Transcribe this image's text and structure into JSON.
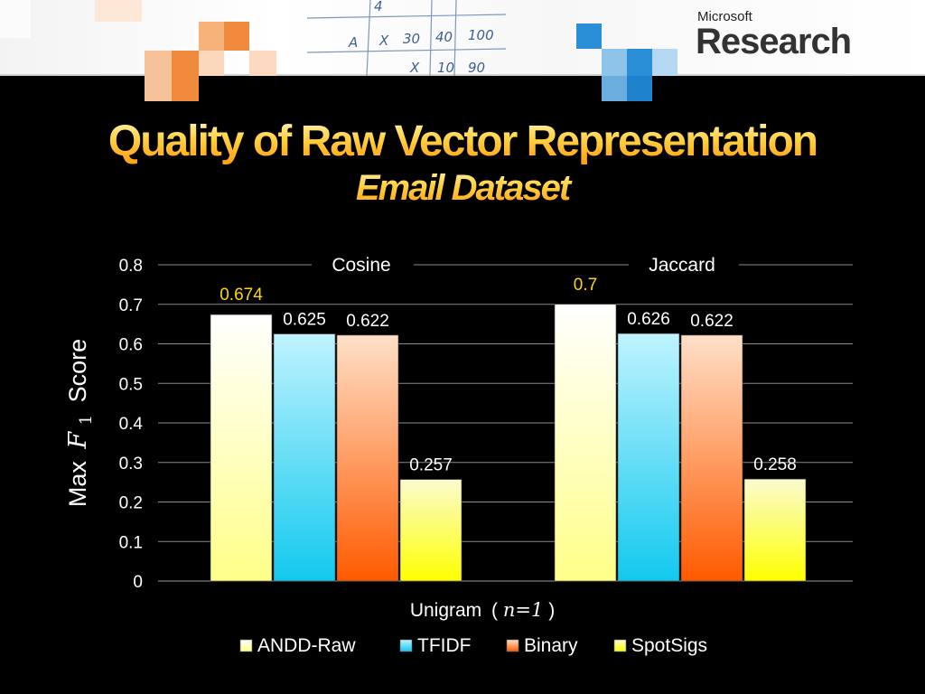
{
  "slide": {
    "title": "Quality of Raw Vector Representation",
    "subtitle": "Email Dataset"
  },
  "logo": {
    "top": "Microsoft",
    "main": "Research"
  },
  "banner_handwriting": [
    "A",
    "X",
    "30",
    "40",
    "100",
    "X",
    "10",
    "90",
    "4"
  ],
  "colors": {
    "background": "#000000",
    "title_gradient": [
      "#fff7c0",
      "#ffd040",
      "#ff9a10"
    ],
    "highlight_label": "#ffd700",
    "banner_orange": "#f08a3c",
    "banner_blue": "#2a8fd6"
  },
  "chart_data": {
    "type": "bar",
    "panels": [
      "Cosine",
      "Jaccard"
    ],
    "series": [
      {
        "name": "ANDD-Raw",
        "values": [
          0.674,
          0.7
        ],
        "labels": [
          "0.674",
          "0.7"
        ],
        "color_top": "#ffffff",
        "color_bottom": "#ffff88",
        "label_color": "#ffd700"
      },
      {
        "name": "TFIDF",
        "values": [
          0.625,
          0.626
        ],
        "labels": [
          "0.625",
          "0.626"
        ],
        "color_top": "#bff3ff",
        "color_bottom": "#12c9ee",
        "label_color": "#ffffff"
      },
      {
        "name": "Binary",
        "values": [
          0.622,
          0.622
        ],
        "labels": [
          "0.622",
          "0.622"
        ],
        "color_top": "#ffe0c8",
        "color_bottom": "#ff5a00",
        "label_color": "#ffffff"
      },
      {
        "name": "SpotSigs",
        "values": [
          0.257,
          0.258
        ],
        "labels": [
          "0.257",
          "0.258"
        ],
        "color_top": "#fbfbd0",
        "color_bottom": "#ffff00",
        "label_color": "#ffffff"
      }
    ],
    "ylabel_prefix": "Max",
    "ylabel_var": "F",
    "ylabel_sub": "1",
    "ylabel_suffix": "Score",
    "xlabel": "Unigram (n=1)",
    "xlabel_main": "Unigram",
    "xlabel_math": "n=1",
    "ylim": [
      0,
      0.8
    ],
    "yticks": [
      "0",
      "0.1",
      "0.2",
      "0.3",
      "0.4",
      "0.5",
      "0.6",
      "0.7",
      "0.8"
    ],
    "grid": true,
    "legend": "bottom"
  }
}
